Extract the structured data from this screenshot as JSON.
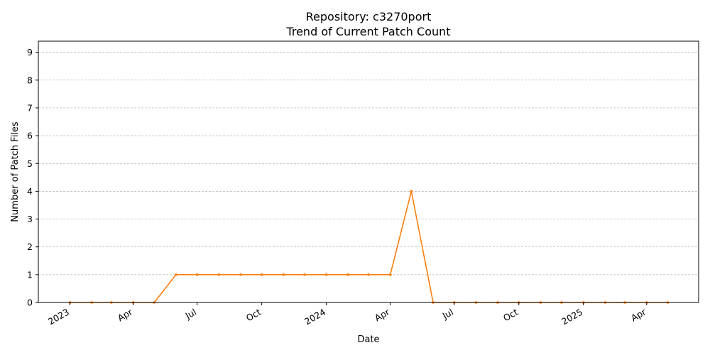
{
  "chart_data": {
    "type": "line",
    "title": "Repository: c3270port",
    "subtitle": "Trend of Current Patch Count",
    "xlabel": "Date",
    "ylabel": "Number of Patch Files",
    "ylim": [
      0,
      9.4
    ],
    "y_ticks": [
      0,
      1,
      2,
      3,
      4,
      5,
      6,
      7,
      8,
      9
    ],
    "x_range": [
      "2022-11-17",
      "2025-06-14"
    ],
    "x_ticks": [
      {
        "date": "2023-01-01",
        "label": "2023"
      },
      {
        "date": "2023-04-01",
        "label": "Apr"
      },
      {
        "date": "2023-07-01",
        "label": "Jul"
      },
      {
        "date": "2023-10-01",
        "label": "Oct"
      },
      {
        "date": "2024-01-01",
        "label": "2024"
      },
      {
        "date": "2024-04-01",
        "label": "Apr"
      },
      {
        "date": "2024-07-01",
        "label": "Jul"
      },
      {
        "date": "2024-10-01",
        "label": "Oct"
      },
      {
        "date": "2025-01-01",
        "label": "2025"
      },
      {
        "date": "2025-04-01",
        "label": "Apr"
      }
    ],
    "grid": "y-dashed",
    "color": "#ff7f0e",
    "x": [
      "2023-01-01",
      "2023-02-01",
      "2023-03-01",
      "2023-04-01",
      "2023-05-01",
      "2023-06-01",
      "2023-07-01",
      "2023-08-01",
      "2023-09-01",
      "2023-10-01",
      "2023-11-01",
      "2023-12-01",
      "2024-01-01",
      "2024-02-01",
      "2024-03-01",
      "2024-04-01",
      "2024-05-01",
      "2024-06-01",
      "2024-07-01",
      "2024-08-01",
      "2024-09-01",
      "2024-10-01",
      "2024-11-01",
      "2024-12-01",
      "2025-01-01",
      "2025-02-01",
      "2025-03-01",
      "2025-04-01",
      "2025-05-01"
    ],
    "values": [
      0,
      0,
      0,
      0,
      0,
      1,
      1,
      1,
      1,
      1,
      1,
      1,
      1,
      1,
      1,
      1,
      4,
      0,
      0,
      0,
      0,
      0,
      0,
      0,
      0,
      0,
      0,
      0,
      0
    ]
  }
}
